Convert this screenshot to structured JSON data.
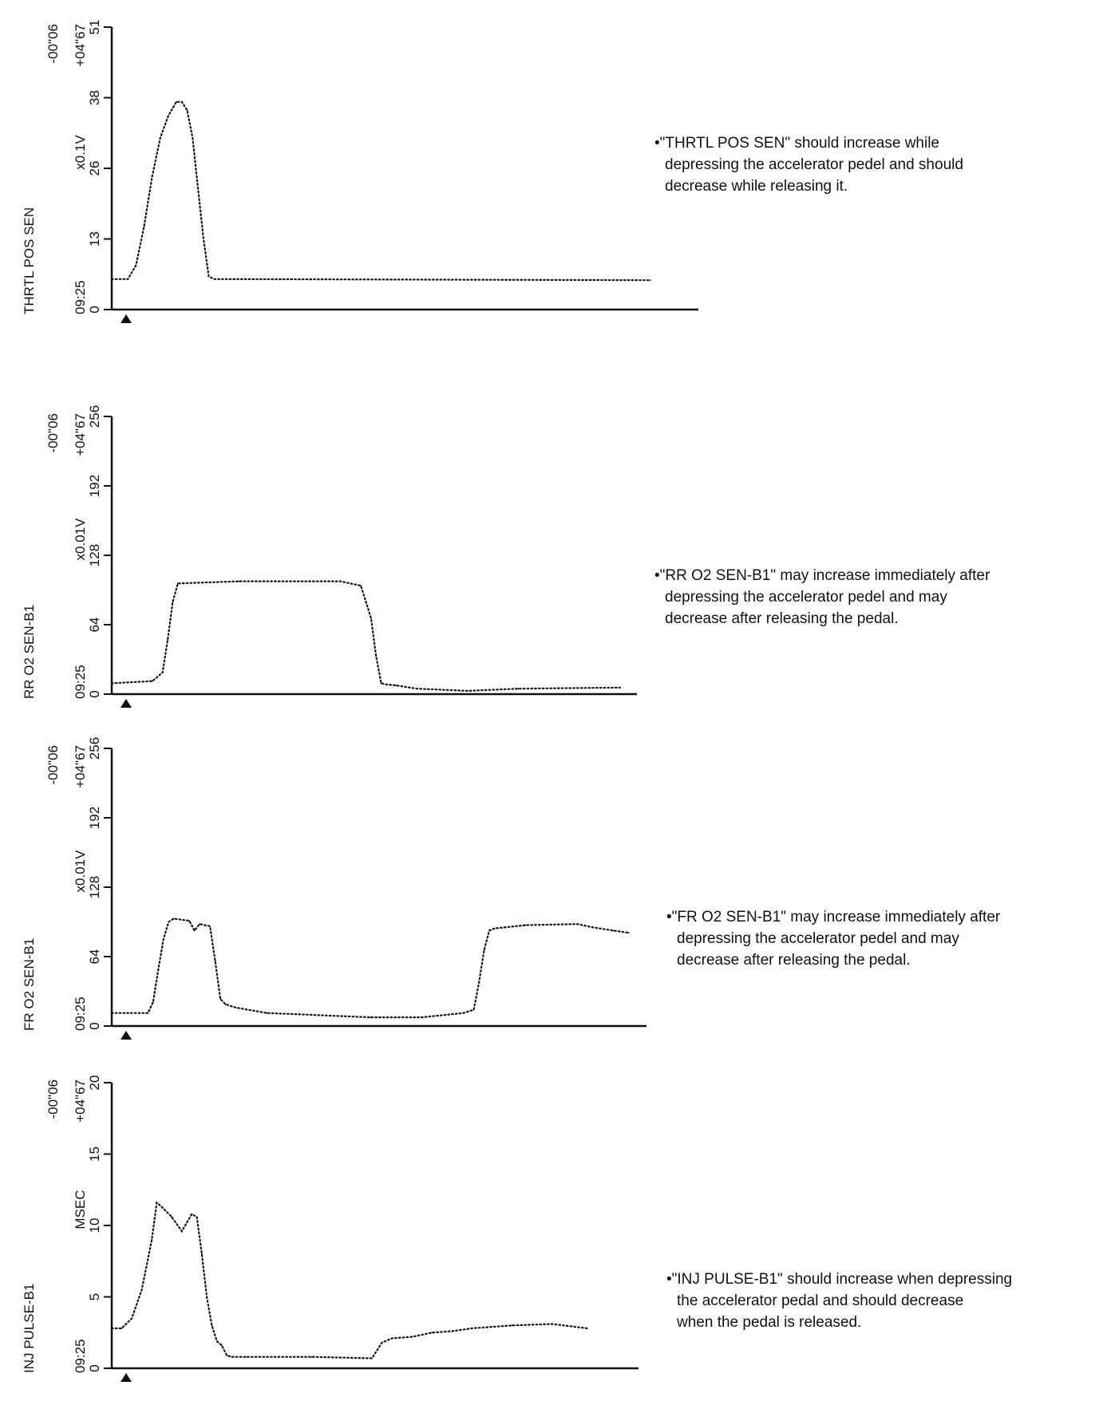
{
  "chart_data": [
    {
      "type": "line",
      "title": "",
      "ylabel": "THRTL POS SEN",
      "unit": "x0.1V",
      "time": "09:25",
      "range_start": "-00\"06",
      "range_end": "+04\"67",
      "ylim": [
        0,
        51
      ],
      "yticks": [
        "0",
        "13",
        "26",
        "38",
        "51"
      ],
      "marker": "▲",
      "series": [
        {
          "x": [
            0,
            3,
            4.5,
            6,
            7.5,
            9,
            10.5,
            12,
            13,
            14,
            15,
            16,
            17,
            18,
            19,
            20,
            100
          ],
          "values": [
            5.5,
            5.5,
            8,
            15,
            24,
            31,
            35,
            37.5,
            37.5,
            36,
            31,
            22,
            13,
            6,
            5.5,
            5.5,
            5.3
          ]
        }
      ],
      "note": [
        "•\"THRTL POS SEN\" should increase while",
        "depressing the accelerator pedel and should",
        "decrease while releasing it."
      ]
    },
    {
      "type": "line",
      "title": "",
      "ylabel": "RR O2 SEN-B1",
      "unit": "x0.01V",
      "time": "09:25",
      "range_start": "-00\"06",
      "range_end": "+04\"67",
      "ylim": [
        0,
        256
      ],
      "yticks": [
        "0",
        "64",
        "128",
        "192",
        "256"
      ],
      "marker": "▲",
      "series": [
        {
          "x": [
            0,
            8,
            10,
            11,
            12,
            13,
            25,
            45,
            49,
            51,
            52,
            53,
            54,
            56,
            60,
            70,
            80,
            100
          ],
          "values": [
            10,
            12,
            20,
            50,
            85,
            102,
            104,
            104,
            100,
            70,
            35,
            10,
            9,
            8,
            5,
            3,
            5,
            6
          ]
        }
      ],
      "note": [
        "•\"RR O2 SEN-B1\" may increase immediately after",
        "depressing the accelerator pedel and may",
        "decrease after releasing the pedal."
      ]
    },
    {
      "type": "line",
      "title": "",
      "ylabel": "FR O2 SEN-B1",
      "unit": "x0.01V",
      "time": "09:25",
      "range_start": "-00\"06",
      "range_end": "+04\"67",
      "ylim": [
        0,
        256
      ],
      "yticks": [
        "0",
        "64",
        "128",
        "192",
        "256"
      ],
      "marker": "▲",
      "series": [
        {
          "x": [
            0,
            7,
            8,
            9,
            10,
            11,
            12,
            15,
            16,
            17,
            18,
            19,
            20,
            21,
            22,
            24,
            30,
            40,
            50,
            60,
            68,
            70,
            71,
            72,
            73,
            74,
            80,
            90,
            93,
            97,
            100
          ],
          "values": [
            12,
            12,
            22,
            52,
            80,
            96,
            99,
            97,
            88,
            94,
            93,
            92,
            60,
            25,
            20,
            17,
            12,
            10,
            8,
            8,
            12,
            15,
            40,
            70,
            88,
            90,
            93,
            94,
            91,
            88,
            86
          ]
        }
      ],
      "note": [
        "•\"FR O2 SEN-B1\" may increase immediately after",
        "depressing the accelerator pedel and may",
        "decrease after releasing the pedal."
      ]
    },
    {
      "type": "line",
      "title": "",
      "ylabel": "INJ PULSE-B1",
      "unit": "MSEC",
      "time": "09:25",
      "range_start": "-00\"06",
      "range_end": "+04\"67",
      "ylim": [
        0,
        20
      ],
      "yticks": [
        "0",
        "5",
        "10",
        "15",
        "20"
      ],
      "marker": "▲",
      "series": [
        {
          "x": [
            0,
            2,
            4,
            6,
            8,
            9,
            10,
            12,
            14,
            15,
            16,
            17,
            18,
            19,
            20,
            21,
            22,
            23,
            24,
            27,
            40,
            52,
            54,
            56,
            60,
            64,
            68,
            72,
            80,
            88,
            95
          ],
          "values": [
            2.8,
            2.8,
            3.5,
            5.5,
            9,
            11.6,
            11.3,
            10.6,
            9.6,
            10.2,
            10.8,
            10.6,
            8,
            5,
            3,
            1.9,
            1.6,
            0.9,
            0.8,
            0.8,
            0.8,
            0.7,
            1.8,
            2.1,
            2.2,
            2.5,
            2.6,
            2.8,
            3.0,
            3.1,
            2.8
          ]
        }
      ],
      "note": [
        "•\"INJ PULSE-B1\" should increase when depressing",
        "the accelerator pedal and should decrease",
        "when the pedal is released."
      ]
    }
  ]
}
